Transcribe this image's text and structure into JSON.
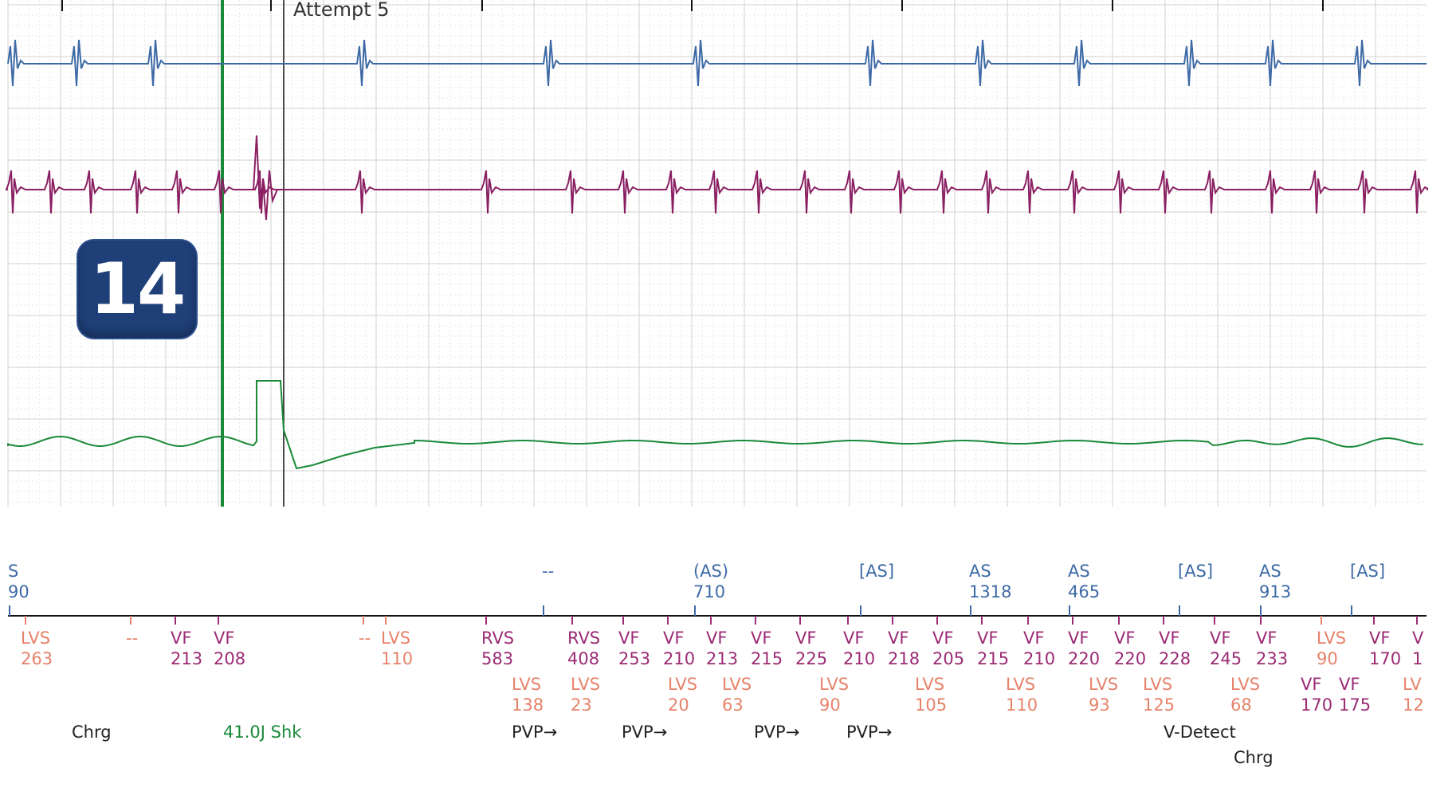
{
  "badge": "14",
  "header": {
    "attempt_label": "Attempt 5"
  },
  "colors": {
    "atrial": "#3d6aa6",
    "ventricular": "#8a1f62",
    "ventricular_label": "#9b2b74",
    "lvs_label": "#e6826a",
    "shock": "#1a8a3a",
    "annotation": "#222222",
    "grid_major": "#d0d0d0",
    "grid_minor": "#e8e8e8",
    "badge_bg": "#1f3f78"
  },
  "chart_data": {
    "type": "line",
    "title": "",
    "channels": [
      {
        "name": "",
        "color": "#3d6aa6"
      },
      {
        "name": "",
        "color": "#8a1f62"
      },
      {
        "name": "",
        "color": "#1a8a3a"
      }
    ],
    "atrial_markers": [
      {
        "label": "S",
        "value": "90",
        "partial": true
      },
      {
        "label": "--",
        "value": ""
      },
      {
        "label": "(AS)",
        "value": "710"
      },
      {
        "label": "[AS]",
        "value": ""
      },
      {
        "label": "AS",
        "value": "1318"
      },
      {
        "label": "AS",
        "value": "465"
      },
      {
        "label": "[AS]",
        "value": ""
      },
      {
        "label": "AS",
        "value": "913"
      },
      {
        "label": "[AS]",
        "value": ""
      }
    ],
    "ventricular_markers_row1": [
      {
        "label": "LVS",
        "value": "263",
        "kind": "lvs"
      },
      {
        "label": "--",
        "value": "",
        "kind": "lvs"
      },
      {
        "label": "VF",
        "value": "213",
        "kind": "vf"
      },
      {
        "label": "VF",
        "value": "208",
        "kind": "vf"
      },
      {
        "label": "--",
        "value": "",
        "kind": "lvs"
      },
      {
        "label": "LVS",
        "value": "110",
        "kind": "lvs"
      },
      {
        "label": "RVS",
        "value": "583",
        "kind": "vf"
      },
      {
        "label": "RVS",
        "value": "408",
        "kind": "vf"
      },
      {
        "label": "VF",
        "value": "253",
        "kind": "vf"
      },
      {
        "label": "VF",
        "value": "210",
        "kind": "vf"
      },
      {
        "label": "VF",
        "value": "213",
        "kind": "vf"
      },
      {
        "label": "VF",
        "value": "215",
        "kind": "vf"
      },
      {
        "label": "VF",
        "value": "225",
        "kind": "vf"
      },
      {
        "label": "VF",
        "value": "210",
        "kind": "vf"
      },
      {
        "label": "VF",
        "value": "218",
        "kind": "vf"
      },
      {
        "label": "VF",
        "value": "205",
        "kind": "vf"
      },
      {
        "label": "VF",
        "value": "215",
        "kind": "vf"
      },
      {
        "label": "VF",
        "value": "210",
        "kind": "vf"
      },
      {
        "label": "VF",
        "value": "220",
        "kind": "vf"
      },
      {
        "label": "VF",
        "value": "220",
        "kind": "vf"
      },
      {
        "label": "VF",
        "value": "228",
        "kind": "vf"
      },
      {
        "label": "VF",
        "value": "245",
        "kind": "vf"
      },
      {
        "label": "VF",
        "value": "233",
        "kind": "vf"
      },
      {
        "label": "LVS",
        "value": "90",
        "kind": "lvs"
      },
      {
        "label": "VF",
        "value": "170",
        "kind": "vf"
      },
      {
        "label": "V",
        "value": "1",
        "kind": "vf",
        "partial": true
      }
    ],
    "ventricular_markers_row2": [
      {
        "label": "LVS",
        "value": "138",
        "kind": "lvs"
      },
      {
        "label": "LVS",
        "value": "23",
        "kind": "lvs"
      },
      {
        "label": "LVS",
        "value": "20",
        "kind": "lvs"
      },
      {
        "label": "LVS",
        "value": "63",
        "kind": "lvs"
      },
      {
        "label": "LVS",
        "value": "90",
        "kind": "lvs"
      },
      {
        "label": "LVS",
        "value": "105",
        "kind": "lvs"
      },
      {
        "label": "LVS",
        "value": "110",
        "kind": "lvs"
      },
      {
        "label": "LVS",
        "value": "93",
        "kind": "lvs"
      },
      {
        "label": "LVS",
        "value": "125",
        "kind": "lvs"
      },
      {
        "label": "LVS",
        "value": "68",
        "kind": "lvs"
      },
      {
        "label": "VF",
        "value": "170",
        "kind": "vf"
      },
      {
        "label": "VF",
        "value": "175",
        "kind": "vf"
      },
      {
        "label": "LV",
        "value": "12",
        "kind": "lvs",
        "partial": true
      }
    ],
    "annotations": [
      {
        "text": "Chrg",
        "color": "#222222"
      },
      {
        "text": "41.0J Shk",
        "color": "#1a8a3a"
      },
      {
        "text": "PVP→",
        "color": "#222222"
      },
      {
        "text": "PVP→",
        "color": "#222222"
      },
      {
        "text": "PVP→",
        "color": "#222222"
      },
      {
        "text": "PVP→",
        "color": "#222222"
      },
      {
        "text": "V-Detect",
        "color": "#222222"
      },
      {
        "text": "Chrg",
        "color": "#222222"
      }
    ]
  }
}
